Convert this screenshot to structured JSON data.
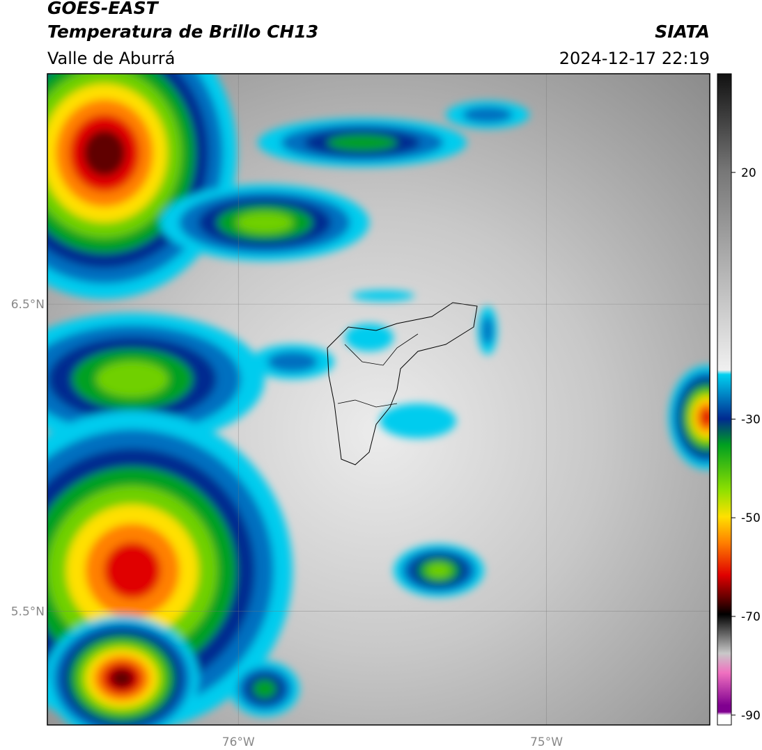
{
  "header": {
    "title": "GOES-EAST",
    "subtitle": "Temperatura de Brillo CH13",
    "region": "Valle de Aburrá",
    "source": "SIATA",
    "datetime": "2024-12-17 22:19"
  },
  "map": {
    "xlim": [
      -76.62,
      -74.47
    ],
    "ylim": [
      5.13,
      7.25
    ],
    "xticks": [
      {
        "value": -76,
        "label": "76°W"
      },
      {
        "value": -75,
        "label": "75°W"
      }
    ],
    "yticks": [
      {
        "value": 6.5,
        "label": "6.5°N"
      },
      {
        "value": 5.5,
        "label": "5.5°N"
      }
    ],
    "grid": true
  },
  "colorbar": {
    "lim": [
      -92,
      40
    ],
    "ticks": [
      20,
      -30,
      -50,
      -70,
      -90
    ]
  }
}
